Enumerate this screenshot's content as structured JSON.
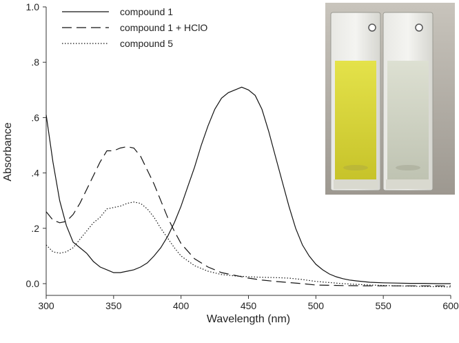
{
  "chart_data": {
    "type": "line",
    "title": "",
    "xlabel": "Wavelength (nm)",
    "ylabel": "Absorbance",
    "xlim": [
      300,
      600
    ],
    "ylim": [
      -0.05,
      1.0
    ],
    "x_ticks": [
      300,
      350,
      400,
      450,
      500,
      550,
      600
    ],
    "x_tick_labels": [
      "300",
      "350",
      "400",
      "450",
      "500",
      "550",
      "600"
    ],
    "y_ticks": [
      0.0,
      0.2,
      0.4,
      0.6,
      0.8,
      1.0
    ],
    "y_tick_labels": [
      "0.0",
      ".2",
      ".4",
      ".6",
      ".8",
      "1.0"
    ],
    "grid": false,
    "legend_position": "top-left",
    "series": [
      {
        "name": "compound 1",
        "style": "solid",
        "x": [
          300,
          305,
          310,
          315,
          320,
          325,
          330,
          335,
          340,
          345,
          350,
          355,
          360,
          365,
          370,
          375,
          380,
          385,
          390,
          395,
          400,
          405,
          410,
          415,
          420,
          425,
          430,
          435,
          440,
          445,
          450,
          455,
          460,
          465,
          470,
          475,
          480,
          485,
          490,
          495,
          500,
          505,
          510,
          515,
          520,
          525,
          530,
          540,
          550,
          560,
          570,
          580,
          590,
          600
        ],
        "y": [
          0.61,
          0.44,
          0.3,
          0.21,
          0.15,
          0.13,
          0.11,
          0.08,
          0.06,
          0.05,
          0.04,
          0.04,
          0.045,
          0.05,
          0.06,
          0.075,
          0.1,
          0.13,
          0.17,
          0.22,
          0.28,
          0.35,
          0.42,
          0.5,
          0.57,
          0.63,
          0.67,
          0.69,
          0.7,
          0.71,
          0.7,
          0.68,
          0.63,
          0.55,
          0.46,
          0.37,
          0.28,
          0.2,
          0.14,
          0.1,
          0.07,
          0.05,
          0.035,
          0.025,
          0.018,
          0.013,
          0.01,
          0.005,
          0.003,
          0.002,
          0.001,
          0.001,
          0.0,
          0.0
        ]
      },
      {
        "name": "compound 1 + HClO",
        "style": "dashed",
        "x": [
          300,
          305,
          310,
          315,
          320,
          325,
          330,
          335,
          340,
          345,
          350,
          355,
          360,
          365,
          370,
          375,
          380,
          385,
          390,
          395,
          400,
          410,
          420,
          430,
          440,
          450,
          460,
          470,
          480,
          490,
          500,
          520,
          540,
          560,
          580,
          600
        ],
        "y": [
          0.26,
          0.23,
          0.22,
          0.225,
          0.25,
          0.29,
          0.34,
          0.39,
          0.44,
          0.48,
          0.48,
          0.49,
          0.495,
          0.49,
          0.46,
          0.41,
          0.36,
          0.3,
          0.24,
          0.19,
          0.145,
          0.09,
          0.06,
          0.04,
          0.03,
          0.02,
          0.013,
          0.008,
          0.004,
          0.0,
          -0.005,
          -0.007,
          -0.008,
          -0.008,
          -0.008,
          -0.008
        ]
      },
      {
        "name": "compound 5",
        "style": "dotted",
        "x": [
          300,
          305,
          310,
          315,
          320,
          325,
          330,
          335,
          340,
          345,
          350,
          355,
          360,
          365,
          370,
          375,
          380,
          385,
          390,
          395,
          400,
          410,
          420,
          430,
          440,
          450,
          460,
          470,
          480,
          490,
          500,
          520,
          540,
          560,
          580,
          600
        ],
        "y": [
          0.14,
          0.115,
          0.11,
          0.115,
          0.13,
          0.16,
          0.19,
          0.22,
          0.24,
          0.27,
          0.275,
          0.28,
          0.29,
          0.295,
          0.29,
          0.27,
          0.24,
          0.2,
          0.165,
          0.13,
          0.1,
          0.065,
          0.045,
          0.033,
          0.028,
          0.025,
          0.023,
          0.022,
          0.02,
          0.015,
          0.008,
          0.0,
          -0.005,
          -0.008,
          -0.01,
          -0.012
        ]
      }
    ]
  },
  "photo_inset": {
    "left_cuvette_color": "#d7d332",
    "right_cuvette_color": "#ccd0c0"
  }
}
